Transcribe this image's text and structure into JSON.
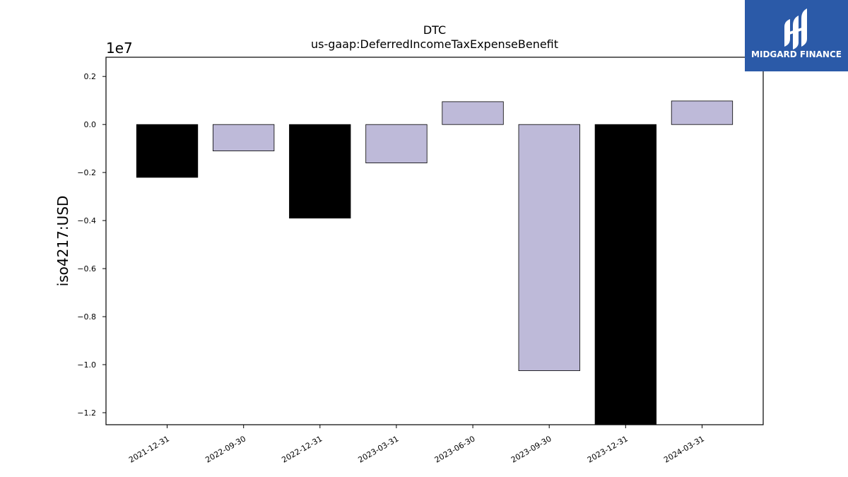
{
  "chart_data": {
    "type": "bar",
    "title": "DTC",
    "subtitle": "us-gaap:DeferredIncomeTaxExpenseBenefit",
    "ylabel": "iso4217:USD",
    "xlabel": "",
    "y_offset_label": "1e7",
    "categories": [
      "2021-12-31",
      "2022-09-30",
      "2022-12-31",
      "2023-03-31",
      "2023-06-30",
      "2023-09-30",
      "2023-12-31",
      "2024-03-31"
    ],
    "values": [
      -2200000,
      -1100000,
      -3900000,
      -1600000,
      950000,
      -10250000,
      -12500000,
      980000
    ],
    "bar_colors": [
      "#000000",
      "#bebad9",
      "#000000",
      "#bebad9",
      "#bebad9",
      "#bebad9",
      "#000000",
      "#bebad9"
    ],
    "ylim": [
      -12500000,
      2800000
    ],
    "yticks": [
      0.2,
      0.0,
      -0.2,
      -0.4,
      -0.6,
      -0.8,
      -1.0,
      -1.2
    ],
    "ytick_labels": [
      "0.2",
      "0.0",
      "−0.2",
      "−0.4",
      "−0.6",
      "−0.8",
      "−1.0",
      "−1.2"
    ],
    "grid": false,
    "legend": "none"
  },
  "logo": {
    "text": "MIDGARD FINANCE",
    "background": "#2b5aa8",
    "icon": "midgard-logo-icon"
  }
}
